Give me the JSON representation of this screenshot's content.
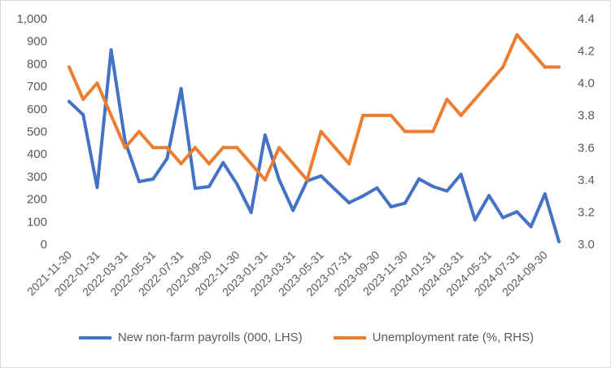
{
  "chart_data": {
    "type": "line",
    "x": [
      "2021-11-30",
      "2021-12-31",
      "2022-01-31",
      "2022-02-28",
      "2022-03-31",
      "2022-04-30",
      "2022-05-31",
      "2022-06-30",
      "2022-07-31",
      "2022-08-31",
      "2022-09-30",
      "2022-10-31",
      "2022-11-30",
      "2022-12-31",
      "2023-01-31",
      "2023-02-28",
      "2023-03-31",
      "2023-04-30",
      "2023-05-31",
      "2023-06-30",
      "2023-07-31",
      "2023-08-31",
      "2023-09-30",
      "2023-10-31",
      "2023-11-30",
      "2023-12-31",
      "2024-01-31",
      "2024-02-29",
      "2024-03-31",
      "2024-04-30",
      "2024-05-31",
      "2024-06-30",
      "2024-07-31",
      "2024-08-31",
      "2024-09-30",
      "2024-10-31"
    ],
    "x_tick_labels": [
      "2021-11-30",
      "2022-01-31",
      "2022-03-31",
      "2022-05-31",
      "2022-07-31",
      "2022-09-30",
      "2022-11-30",
      "2023-01-31",
      "2023-03-31",
      "2023-05-31",
      "2023-07-31",
      "2023-09-30",
      "2023-11-30",
      "2024-01-31",
      "2024-03-31",
      "2024-05-31",
      "2024-07-31",
      "2024-09-30"
    ],
    "y_left": {
      "range": [
        0,
        1000
      ],
      "ticks": [
        "0",
        "100",
        "200",
        "300",
        "400",
        "500",
        "600",
        "700",
        "800",
        "900",
        "1,000"
      ]
    },
    "y_right": {
      "range": [
        3.0,
        4.4
      ],
      "ticks": [
        "3.0",
        "3.2",
        "3.4",
        "3.6",
        "3.8",
        "4.0",
        "4.2",
        "4.4"
      ]
    },
    "series": [
      {
        "name": "New non-farm payrolls (000, LHS)",
        "axis": "left",
        "color": "#4472C4",
        "values": [
          633,
          574,
          252,
          862,
          456,
          278,
          289,
          380,
          690,
          248,
          256,
          362,
          266,
          141,
          484,
          287,
          150,
          281,
          303,
          243,
          184,
          214,
          250,
          166,
          182,
          290,
          256,
          236,
          310,
          108,
          216,
          118,
          144,
          78,
          223,
          12
        ]
      },
      {
        "name": "Unemployment rate (%, RHS)",
        "axis": "right",
        "color": "#ED7D31",
        "values": [
          4.1,
          3.9,
          4.0,
          3.8,
          3.6,
          3.7,
          3.6,
          3.6,
          3.5,
          3.6,
          3.5,
          3.6,
          3.6,
          3.5,
          3.4,
          3.6,
          3.5,
          3.4,
          3.7,
          3.6,
          3.5,
          3.8,
          3.8,
          3.8,
          3.7,
          3.7,
          3.7,
          3.9,
          3.8,
          3.9,
          4.0,
          4.1,
          4.3,
          4.2,
          4.1,
          4.1
        ]
      }
    ],
    "legend_position": "bottom",
    "grid": false
  }
}
